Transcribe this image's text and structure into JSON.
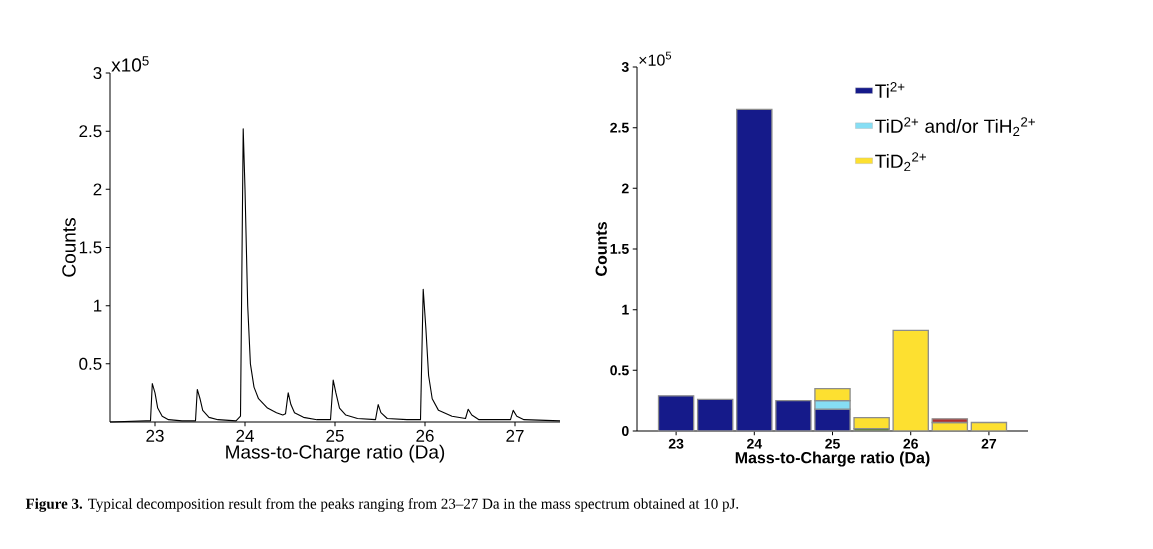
{
  "chart_data": [
    {
      "type": "line",
      "xlabel": "Mass-to-Charge ratio (Da)",
      "ylabel": "Counts",
      "annotations": [
        "x10$^{5}$"
      ],
      "xlim": [
        22.5,
        27.5
      ],
      "ylim": [
        0,
        3
      ],
      "xticks": [
        23,
        24,
        25,
        26,
        27
      ],
      "yticks": [
        0.5,
        1,
        1.5,
        2,
        2.5,
        3
      ],
      "color": "#000000",
      "x": [
        22.5,
        22.9,
        22.95,
        22.97,
        23.0,
        23.03,
        23.08,
        23.15,
        23.3,
        23.45,
        23.47,
        23.5,
        23.53,
        23.6,
        23.7,
        23.9,
        23.95,
        23.98,
        24.0,
        24.03,
        24.06,
        24.1,
        24.15,
        24.25,
        24.35,
        24.42,
        24.45,
        24.48,
        24.51,
        24.55,
        24.65,
        24.8,
        24.95,
        24.98,
        25.01,
        25.05,
        25.12,
        25.25,
        25.45,
        25.48,
        25.51,
        25.58,
        25.8,
        25.95,
        25.98,
        26.01,
        26.04,
        26.08,
        26.15,
        26.3,
        26.45,
        26.48,
        26.52,
        26.6,
        26.8,
        26.95,
        26.98,
        27.02,
        27.1,
        27.5
      ],
      "values": [
        0,
        0.01,
        0.01,
        0.33,
        0.25,
        0.12,
        0.05,
        0.02,
        0.01,
        0.01,
        0.28,
        0.2,
        0.1,
        0.04,
        0.02,
        0.01,
        0.05,
        2.52,
        2.0,
        1.0,
        0.5,
        0.3,
        0.2,
        0.12,
        0.08,
        0.06,
        0.07,
        0.25,
        0.15,
        0.08,
        0.04,
        0.02,
        0.02,
        0.36,
        0.25,
        0.12,
        0.06,
        0.03,
        0.02,
        0.15,
        0.08,
        0.03,
        0.02,
        0.02,
        1.14,
        0.8,
        0.4,
        0.2,
        0.1,
        0.05,
        0.03,
        0.11,
        0.06,
        0.02,
        0.02,
        0.02,
        0.1,
        0.05,
        0.02,
        0.01
      ]
    },
    {
      "type": "bar",
      "stacked": true,
      "xlabel": "Mass-to-Charge ratio (Da)",
      "ylabel": "Counts",
      "annotations": [
        "×10$^{5}$",
        "**Figure 3.** Typical decomposition result from the peaks ranging from 23–27 Da in the mass spectrum obtained at 10 pJ."
      ],
      "xlim": [
        22.5,
        27.5
      ],
      "ylim": [
        0,
        3
      ],
      "xticks": [
        23,
        24,
        25,
        26,
        27
      ],
      "yticks": [
        0,
        0.5,
        1,
        1.5,
        2,
        2.5,
        3
      ],
      "legend": "top right",
      "x": [
        23,
        23.5,
        24,
        24.5,
        25,
        25.5,
        26,
        26.5,
        27
      ],
      "series": [
        {
          "name": "Ti$^{2+}$",
          "color": "#151a8a",
          "values": [
            0.29,
            0.26,
            2.65,
            0.25,
            0.18,
            null,
            null,
            null,
            null
          ]
        },
        {
          "name": "TiD$^{2+}$ and/or TiH$_{2}$$^{2+}$",
          "color": "#86def4",
          "values": [
            null,
            null,
            null,
            null,
            0.07,
            null,
            null,
            null,
            null
          ]
        },
        {
          "color": "#4a7a20",
          "values": [
            null,
            null,
            null,
            null,
            null,
            0.02,
            null,
            null,
            null
          ]
        },
        {
          "name": "TiD$_{2}$$^{2+}$",
          "color": "#fde030",
          "values": [
            null,
            null,
            null,
            null,
            0.1,
            0.09,
            0.83,
            0.07,
            0.07
          ]
        },
        {
          "color": "#b03030",
          "values": [
            null,
            null,
            null,
            null,
            null,
            null,
            null,
            0.03,
            null
          ]
        }
      ]
    }
  ]
}
